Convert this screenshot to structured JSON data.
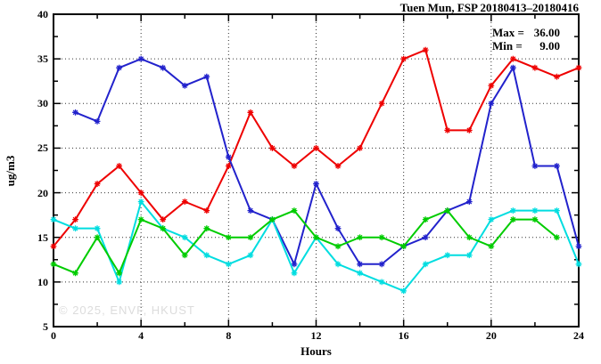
{
  "title": "Tuen Mun, FSP 20180413–20180416",
  "annotation": {
    "max_label": "Max =",
    "max_value": "36.00",
    "min_label": "Min =",
    "min_value": "9.00"
  },
  "watermark": "© 2025, ENVF, HKUST",
  "chart_data": {
    "type": "line",
    "title": "Tuen Mun, FSP 20180413–20180416",
    "xlabel": "Hours",
    "ylabel": "ug/m3",
    "xlim": [
      0,
      24
    ],
    "ylim": [
      5,
      40
    ],
    "x_major_ticks": [
      0,
      4,
      8,
      12,
      16,
      20,
      24
    ],
    "x_minor_ticks": [
      2,
      6,
      10,
      14,
      18,
      22
    ],
    "y_major_ticks": [
      5,
      10,
      15,
      20,
      25,
      30,
      35,
      40
    ],
    "y_minor_ticks": [
      7.5,
      12.5,
      17.5,
      22.5,
      27.5,
      32.5,
      37.5
    ],
    "x_gridlines": [
      4,
      8,
      12,
      16,
      20
    ],
    "y_gridlines": [
      10,
      15,
      20,
      25,
      30,
      35
    ],
    "grid": "dotted",
    "legend": "none",
    "marker": "asterisk",
    "stat_max": 36.0,
    "stat_min": 9.0,
    "x": [
      0,
      1,
      2,
      3,
      4,
      5,
      6,
      7,
      8,
      9,
      10,
      11,
      12,
      13,
      14,
      15,
      16,
      17,
      18,
      19,
      20,
      21,
      22,
      23,
      24
    ],
    "series": [
      {
        "name": "day-red",
        "color": "#ee0000",
        "values": [
          14,
          17,
          21,
          23,
          20,
          17,
          19,
          18,
          23,
          29,
          25,
          23,
          25,
          23,
          25,
          30,
          35,
          36,
          27,
          27,
          32,
          35,
          34,
          33,
          34
        ]
      },
      {
        "name": "day-blue",
        "color": "#2222cc",
        "values": [
          null,
          29,
          28,
          34,
          35,
          34,
          32,
          33,
          24,
          18,
          17,
          12,
          21,
          16,
          12,
          12,
          14,
          15,
          18,
          19,
          30,
          34,
          23,
          23,
          14
        ]
      },
      {
        "name": "day-cyan",
        "color": "#00dde0",
        "values": [
          17,
          16,
          16,
          10,
          19,
          16,
          15,
          13,
          12,
          13,
          17,
          11,
          15,
          12,
          11,
          10,
          9,
          12,
          13,
          13,
          17,
          18,
          18,
          18,
          12
        ]
      },
      {
        "name": "day-green",
        "color": "#00cc00",
        "values": [
          12,
          11,
          15,
          11,
          17,
          16,
          13,
          16,
          15,
          15,
          17,
          18,
          15,
          14,
          15,
          15,
          14,
          17,
          18,
          15,
          14,
          17,
          17,
          15,
          null
        ]
      }
    ]
  }
}
